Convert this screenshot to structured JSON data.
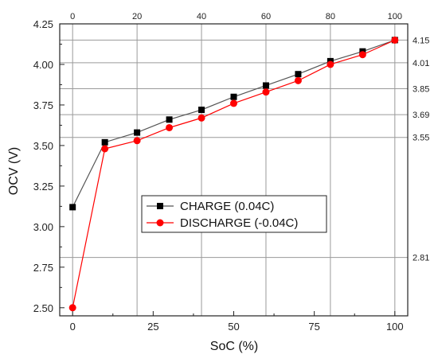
{
  "chart_data": {
    "type": "line",
    "xlabel": "SoC (%)",
    "ylabel": "OCV (V)",
    "xlim": [
      -4,
      104
    ],
    "ylim": [
      2.45,
      4.25
    ],
    "x_ticks": [
      0,
      25,
      50,
      75,
      100
    ],
    "y_ticks": [
      2.5,
      2.75,
      3.0,
      3.25,
      3.5,
      3.75,
      4.0,
      4.25
    ],
    "top_ticks": [
      0,
      20,
      40,
      60,
      80,
      100
    ],
    "right_ticks": [
      4.15,
      4.01,
      3.85,
      3.69,
      3.55,
      2.81
    ],
    "vertical_gridlines": [
      0,
      20,
      40,
      60,
      80,
      100
    ],
    "horizontal_gridlines": [
      4.15,
      4.01,
      3.85,
      3.69,
      3.55,
      2.81
    ],
    "grid": true,
    "legend_position": "center",
    "x": [
      0,
      10,
      20,
      30,
      40,
      50,
      60,
      70,
      80,
      90,
      100
    ],
    "series": [
      {
        "name": "CHARGE (0.04C)",
        "marker": "square",
        "color": "#000000",
        "line_color": "#555555",
        "values": [
          3.12,
          3.52,
          3.58,
          3.66,
          3.72,
          3.8,
          3.87,
          3.94,
          4.02,
          4.08,
          4.15
        ]
      },
      {
        "name": "DISCHARGE (-0.04C)",
        "marker": "circle",
        "color": "#ff0000",
        "line_color": "#ff0000",
        "values": [
          2.5,
          3.48,
          3.53,
          3.61,
          3.67,
          3.76,
          3.83,
          3.9,
          4.0,
          4.06,
          4.15
        ]
      }
    ]
  }
}
